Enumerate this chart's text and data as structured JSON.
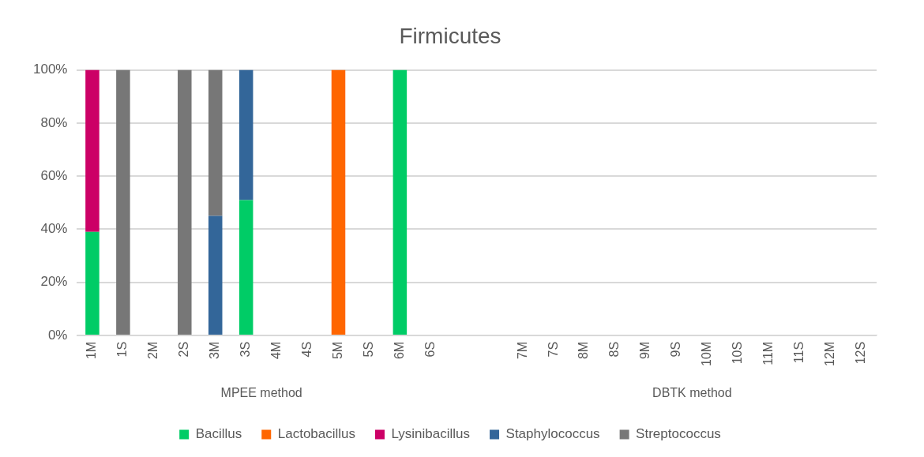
{
  "chart_data": {
    "type": "bar",
    "title": "Firmicutes",
    "stacked": true,
    "grid": "y",
    "legend": "bottom",
    "categories": [
      "1M",
      "1S",
      "2M",
      "2S",
      "3M",
      "3S",
      "4M",
      "4S",
      "5M",
      "5S",
      "6M",
      "6S",
      null,
      null,
      "7M",
      "7S",
      "8M",
      "8S",
      "9M",
      "9S",
      "10M",
      "10S",
      "11M",
      "11S",
      "12M",
      "12S"
    ],
    "series": [
      {
        "name": "Bacillus",
        "color": "#00cc66",
        "values": [
          39,
          0,
          0,
          0,
          0,
          51,
          0,
          0,
          0,
          0,
          100,
          0,
          null,
          null,
          0,
          0,
          0,
          0,
          0,
          0,
          0,
          0,
          0,
          0,
          0,
          0
        ]
      },
      {
        "name": "Lactobacillus",
        "color": "#ff6600",
        "values": [
          0,
          0,
          0,
          0,
          0,
          0,
          0,
          0,
          100,
          0,
          0,
          0,
          null,
          null,
          0,
          0,
          0,
          0,
          0,
          0,
          0,
          0,
          0,
          0,
          0,
          0
        ]
      },
      {
        "name": "Lysinibacillus",
        "color": "#cc0066",
        "values": [
          61,
          0,
          0,
          0,
          0,
          0,
          0,
          0,
          0,
          0,
          0,
          0,
          null,
          null,
          0,
          0,
          0,
          0,
          0,
          0,
          0,
          0,
          0,
          0,
          0,
          0
        ]
      },
      {
        "name": "Staphylococcus",
        "color": "#336699",
        "values": [
          0,
          0,
          0,
          0,
          45,
          49,
          0,
          0,
          0,
          0,
          0,
          0,
          null,
          null,
          0,
          0,
          0,
          0,
          0,
          0,
          0,
          0,
          0,
          0,
          0,
          0
        ]
      },
      {
        "name": "Streptococcus",
        "color": "#777777",
        "values": [
          0,
          100,
          0,
          100,
          55,
          0,
          0,
          0,
          0,
          0,
          0,
          0,
          null,
          null,
          0,
          0,
          0,
          0,
          0,
          0,
          0,
          0,
          0,
          0,
          0,
          0
        ]
      }
    ],
    "ylim": [
      0,
      100
    ],
    "yticks": [
      {
        "value": 0,
        "label": "0%"
      },
      {
        "value": 20,
        "label": "20%"
      },
      {
        "value": 40,
        "label": "40%"
      },
      {
        "value": 60,
        "label": "60%"
      },
      {
        "value": 80,
        "label": "80%"
      },
      {
        "value": 100,
        "label": "100%"
      }
    ],
    "annotations": [
      "MPEE method",
      "DBTK method"
    ]
  }
}
